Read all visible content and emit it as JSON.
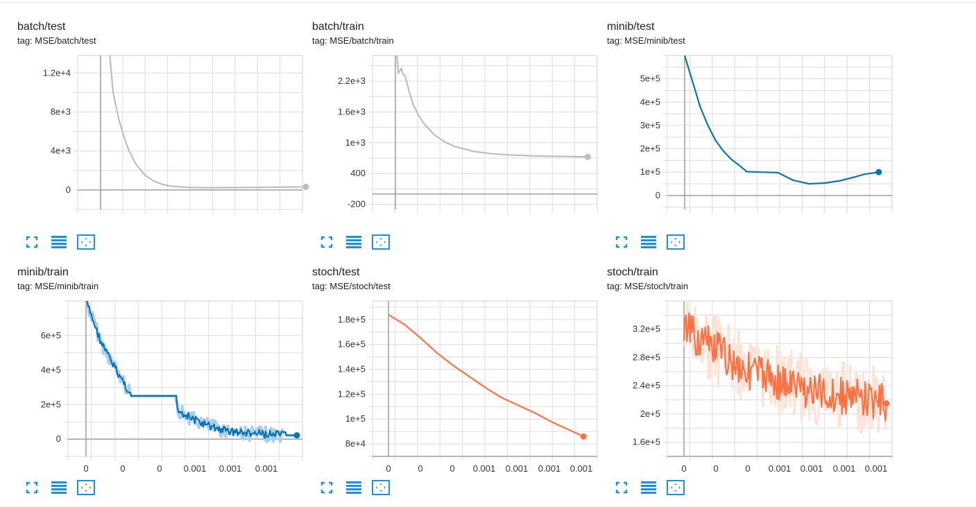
{
  "colors": {
    "gray": "#bdbdbd",
    "blue": "#0b73b0",
    "blue_light": "#a8d0ee",
    "orange": "#ff7043",
    "orange_light": "#fde3d6",
    "icon": "#1f8fe0"
  },
  "buttons": {
    "expand": "expand-icon",
    "data_table": "data-table-icon",
    "fit_domain": "fit-domain-icon"
  },
  "cards": [
    {
      "title": "batch/test",
      "tag": "tag: MSE/batch/test",
      "chart_data": {
        "type": "line",
        "color": "gray",
        "ylim": [
          -2000,
          13800
        ],
        "y_ticks": [
          0,
          4000,
          8000,
          12000
        ],
        "y_tick_labels": [
          "0",
          "4e+3",
          "8e+3",
          "1.2e+4"
        ],
        "x_tick_labels": [],
        "series": [
          {
            "x": [
              0.5,
              0.7,
              1.0,
              1.3,
              1.6,
              2.0,
              2.5,
              3.0,
              3.5,
              4.0,
              5.0,
              6.0,
              7.0,
              8.0,
              9.0,
              10.0,
              11.0,
              11.5
            ],
            "y": [
              14200,
              10000,
              7400,
              5500,
              4000,
              2600,
              1500,
              900,
              550,
              380,
              260,
              230,
              240,
              250,
              270,
              290,
              310,
              320
            ]
          }
        ]
      }
    },
    {
      "title": "batch/train",
      "tag": "tag: MSE/batch/train",
      "chart_data": {
        "type": "line",
        "color": "gray",
        "ylim": [
          -300,
          2700
        ],
        "y_ticks": [
          -200,
          400,
          1000,
          1600,
          2200
        ],
        "y_tick_labels": [
          "-200",
          "400",
          "1e+3",
          "1.6e+3",
          "2.2e+3"
        ],
        "x_tick_labels": [],
        "series": [
          {
            "x": [
              0.05,
              0.15,
              0.3,
              0.4,
              0.5,
              0.7,
              0.9,
              1.2,
              1.5,
              2.0,
              2.5,
              3.0,
              4.0,
              5.0,
              6.0,
              7.0,
              8.0,
              9.0,
              9.8
            ],
            "y": [
              2900,
              2350,
              2450,
              2330,
              2300,
              2000,
              1750,
              1520,
              1350,
              1150,
              1020,
              930,
              830,
              780,
              760,
              745,
              735,
              730,
              725
            ]
          }
        ]
      }
    },
    {
      "title": "minib/test",
      "tag": "tag: MSE/minib/test",
      "chart_data": {
        "type": "line",
        "color": "blue",
        "ylim": [
          -60000,
          600000
        ],
        "y_ticks": [
          0,
          100000,
          200000,
          300000,
          400000,
          500000
        ],
        "y_tick_labels": [
          "0",
          "1e+5",
          "2e+5",
          "3e+5",
          "4e+5",
          "5e+5"
        ],
        "x_tick_labels": [],
        "series": [
          {
            "x": [
              0.0,
              0.5,
              1.0,
              1.5,
              2.0,
              2.5,
              3.0,
              3.5,
              4.0,
              5.0,
              6.0,
              7.0,
              8.0,
              9.0,
              10.0,
              11.0,
              11.5,
              12.5
            ],
            "y": [
              600000,
              490000,
              380000,
              300000,
              235000,
              190000,
              155000,
              130000,
              102000,
              100000,
              98000,
              65000,
              50000,
              53000,
              63000,
              80000,
              90000,
              100000
            ]
          }
        ]
      }
    },
    {
      "title": "minib/train",
      "tag": "tag: MSE/minib/train",
      "chart_data": {
        "type": "line",
        "color": "blue",
        "band": true,
        "noisy": true,
        "ylim": [
          -100000,
          800000
        ],
        "y_ticks": [
          0,
          200000,
          400000,
          600000
        ],
        "y_tick_labels": [
          "0",
          "2e+5",
          "4e+5",
          "6e+5"
        ],
        "x_tick_labels": [
          "0",
          "0",
          "0",
          "0.001",
          "0.001",
          "0.001"
        ],
        "series": [
          {
            "x": [
              0,
              1,
              1.5,
              2,
              2.5,
              3,
              4,
              5,
              6,
              6.1,
              7,
              8,
              9,
              10,
              11,
              12,
              12.5,
              13.3,
              14
            ],
            "y": [
              800000,
              560000,
              480000,
              400000,
              330000,
              250000,
              250000,
              250000,
              250000,
              170000,
              120000,
              80000,
              55000,
              40000,
              32000,
              28000,
              25000,
              22000,
              22000
            ]
          }
        ]
      }
    },
    {
      "title": "stoch/test",
      "tag": "tag: MSE/stoch/test",
      "chart_data": {
        "type": "line",
        "color": "orange",
        "ylim": [
          70000,
          195000
        ],
        "y_ticks": [
          80000,
          100000,
          120000,
          140000,
          160000,
          180000
        ],
        "y_tick_labels": [
          "8e+4",
          "1e+5",
          "1.2e+5",
          "1.4e+5",
          "1.6e+5",
          "1.8e+5"
        ],
        "x_tick_labels": [
          "0",
          "0",
          "0",
          "0.001",
          "0.001",
          "0.001",
          "0.001"
        ],
        "series": [
          {
            "x": [
              0,
              1,
              2,
              3,
              4,
              5,
              6,
              7,
              8,
              9,
              10,
              11,
              12
            ],
            "y": [
              184000,
              176000,
              165000,
              153000,
              143000,
              134000,
              125000,
              117000,
              111000,
              105000,
              98000,
              92000,
              86000
            ]
          }
        ]
      }
    },
    {
      "title": "stoch/train",
      "tag": "tag: MSE/stoch/train",
      "chart_data": {
        "type": "line",
        "color": "orange",
        "band": true,
        "noisy": true,
        "ylim": [
          140000,
          360000
        ],
        "y_ticks": [
          160000,
          200000,
          240000,
          280000,
          320000
        ],
        "y_tick_labels": [
          "1.6e+5",
          "2e+5",
          "2.4e+5",
          "2.8e+5",
          "3.2e+5"
        ],
        "x_tick_labels": [
          "0",
          "0",
          "0",
          "0.001",
          "0.001",
          "0.001",
          "0.001"
        ],
        "series": [
          {
            "x": [
              0,
              1,
              2,
              3,
              4,
              5,
              6,
              7,
              8,
              9,
              10,
              11,
              12,
              12.5
            ],
            "y": [
              320000,
              305000,
              290000,
              275000,
              262000,
              255000,
              245000,
              238000,
              232000,
              228000,
              225000,
              222000,
              218000,
              215000
            ]
          }
        ]
      }
    }
  ]
}
